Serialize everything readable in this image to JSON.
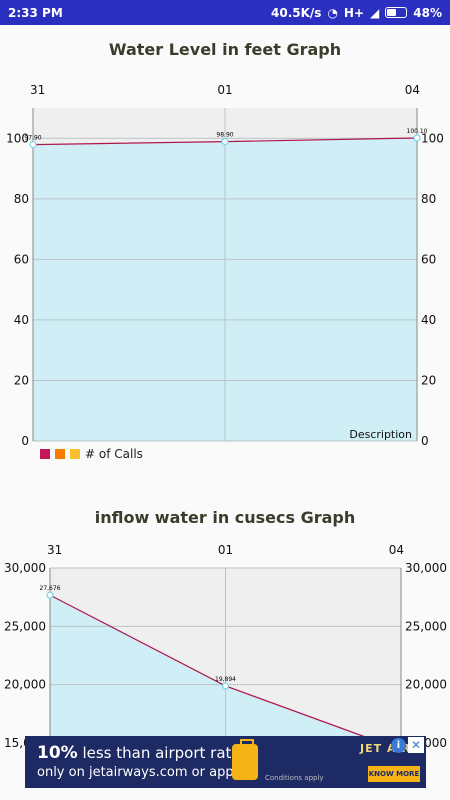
{
  "status_bar": {
    "time": "2:33 PM",
    "speed": "40.5K/s",
    "network": "H+",
    "battery": "48%"
  },
  "charts": {
    "water_level": {
      "title": "Water Level in feet Graph",
      "description": "Description",
      "legend_label": "# of Calls"
    },
    "inflow": {
      "title": "inflow water in cusecs Graph"
    }
  },
  "chart_data": [
    {
      "type": "area",
      "title": "Water Level in feet Graph",
      "categories": [
        "31",
        "01",
        "04"
      ],
      "series": [
        {
          "values": [
            97.9,
            98.9,
            100.1
          ],
          "labels": [
            "97.90",
            "98.90",
            "100.10"
          ]
        }
      ],
      "ylim": [
        0,
        110
      ],
      "yticks": [
        "0",
        "20",
        "40",
        "60",
        "80",
        "100"
      ],
      "legend": {
        "placement": "bottom-left",
        "label": "# of Calls",
        "colors": [
          "#c2185b",
          "#f57c00",
          "#fbc02d"
        ]
      },
      "description": "Description",
      "grid": true
    },
    {
      "type": "area",
      "title": "inflow water in cusecs Graph",
      "categories": [
        "31",
        "01",
        "04"
      ],
      "series": [
        {
          "values": [
            27676,
            19894,
            14400
          ],
          "labels": [
            "27,676",
            "19,894",
            ""
          ]
        }
      ],
      "ylim": [
        14400,
        30000
      ],
      "yticks": [
        "15,000",
        "20,000",
        "25,000",
        "30,000"
      ],
      "grid": true
    }
  ],
  "ad": {
    "headline_bold": "10%",
    "headline_rest": " less than airport rate",
    "line2": "only on jetairways.com or app",
    "conditions": "Conditions apply",
    "brand": "JET AIRW",
    "cta": "KNOW MORE",
    "info": "i",
    "close": "✕"
  }
}
